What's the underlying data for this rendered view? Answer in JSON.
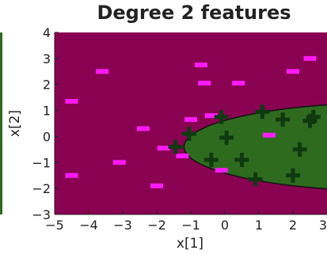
{
  "chart_data": {
    "type": "scatter",
    "title": "Degree 2 features",
    "xlabel": "x[1]",
    "ylabel": "x[2]",
    "xlim": [
      -5,
      3
    ],
    "ylim": [
      -3,
      4
    ],
    "xticks": [
      -5,
      -4,
      -3,
      -2,
      -1,
      0,
      1,
      2,
      3
    ],
    "yticks": [
      -3,
      -2,
      -1,
      0,
      1,
      2,
      3,
      4
    ],
    "xtick_labels": [
      "−5",
      "−4",
      "−3",
      "−2",
      "−1",
      "0",
      "1",
      "2",
      "3"
    ],
    "ytick_labels": [
      "−3",
      "−2",
      "−1",
      "0",
      "1",
      "2",
      "3",
      "4"
    ],
    "grid": false,
    "colors": {
      "background_region": "#8a0352",
      "positive_region": "#2e6b1f",
      "negative_marker": "#ff1aff",
      "positive_marker": "#0f3a10",
      "region_edge": "#111111"
    },
    "decision_region": {
      "shape": "ellipse",
      "center": [
        4.9,
        -0.4
      ],
      "radius_x": 6.1,
      "radius_y": 1.7
    },
    "series": [
      {
        "marker": "minus",
        "points": [
          [
            -4.5,
            1.35
          ],
          [
            -4.5,
            -1.5
          ],
          [
            -3.6,
            2.5
          ],
          [
            -3.1,
            -1.0
          ],
          [
            -2.4,
            0.3
          ],
          [
            -2.0,
            -1.9
          ],
          [
            -1.8,
            -0.45
          ],
          [
            -1.25,
            -0.75
          ],
          [
            -1.0,
            0.65
          ],
          [
            -0.7,
            2.75
          ],
          [
            -0.6,
            2.05
          ],
          [
            -0.4,
            0.8
          ],
          [
            -0.1,
            -1.3
          ],
          [
            0.4,
            2.05
          ],
          [
            1.3,
            0.05
          ],
          [
            2.0,
            2.5
          ],
          [
            2.5,
            3.0
          ]
        ]
      },
      {
        "marker": "plus",
        "points": [
          [
            -1.45,
            -0.4
          ],
          [
            -1.05,
            0.1
          ],
          [
            -0.1,
            0.75
          ],
          [
            0.05,
            -0.05
          ],
          [
            -0.4,
            -0.9
          ],
          [
            0.5,
            -0.9
          ],
          [
            0.9,
            -1.65
          ],
          [
            1.1,
            0.95
          ],
          [
            1.7,
            0.65
          ],
          [
            2.2,
            -0.5
          ],
          [
            2.0,
            -1.5
          ],
          [
            2.5,
            0.6
          ],
          [
            2.6,
            0.75
          ]
        ]
      }
    ]
  }
}
